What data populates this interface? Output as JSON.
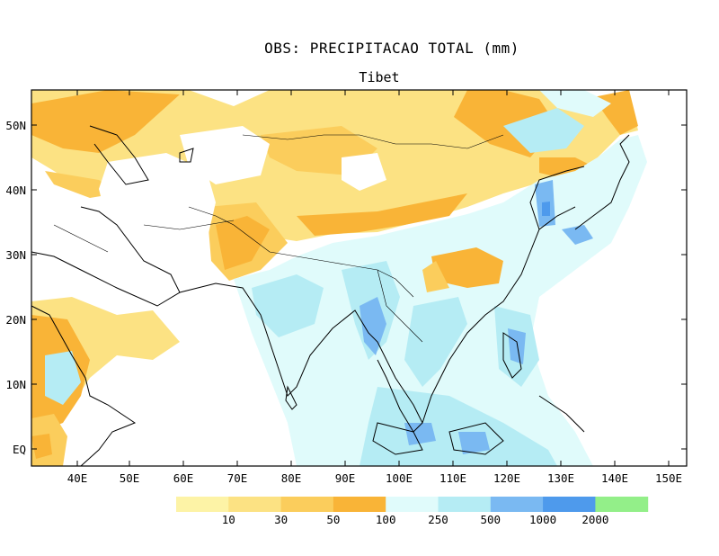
{
  "title": "OBS: PRECIPITACAO TOTAL (mm)",
  "subtitle": "Tibet",
  "lat_labels": [
    "50N",
    "40N",
    "30N",
    "20N",
    "10N",
    "EQ"
  ],
  "lon_labels": [
    "40E",
    "50E",
    "60E",
    "70E",
    "80E",
    "90E",
    "100E",
    "110E",
    "120E",
    "130E",
    "140E",
    "150E"
  ],
  "legend": {
    "colors": [
      "#fdf3a6",
      "#fce283",
      "#fbcd5c",
      "#f9b437",
      "#e0fbfb",
      "#b5ecf4",
      "#7ab9f2",
      "#4e9aec",
      "#93ef89"
    ],
    "labels": [
      "10",
      "30",
      "50",
      "100",
      "250",
      "500",
      "1000",
      "2000"
    ]
  }
}
